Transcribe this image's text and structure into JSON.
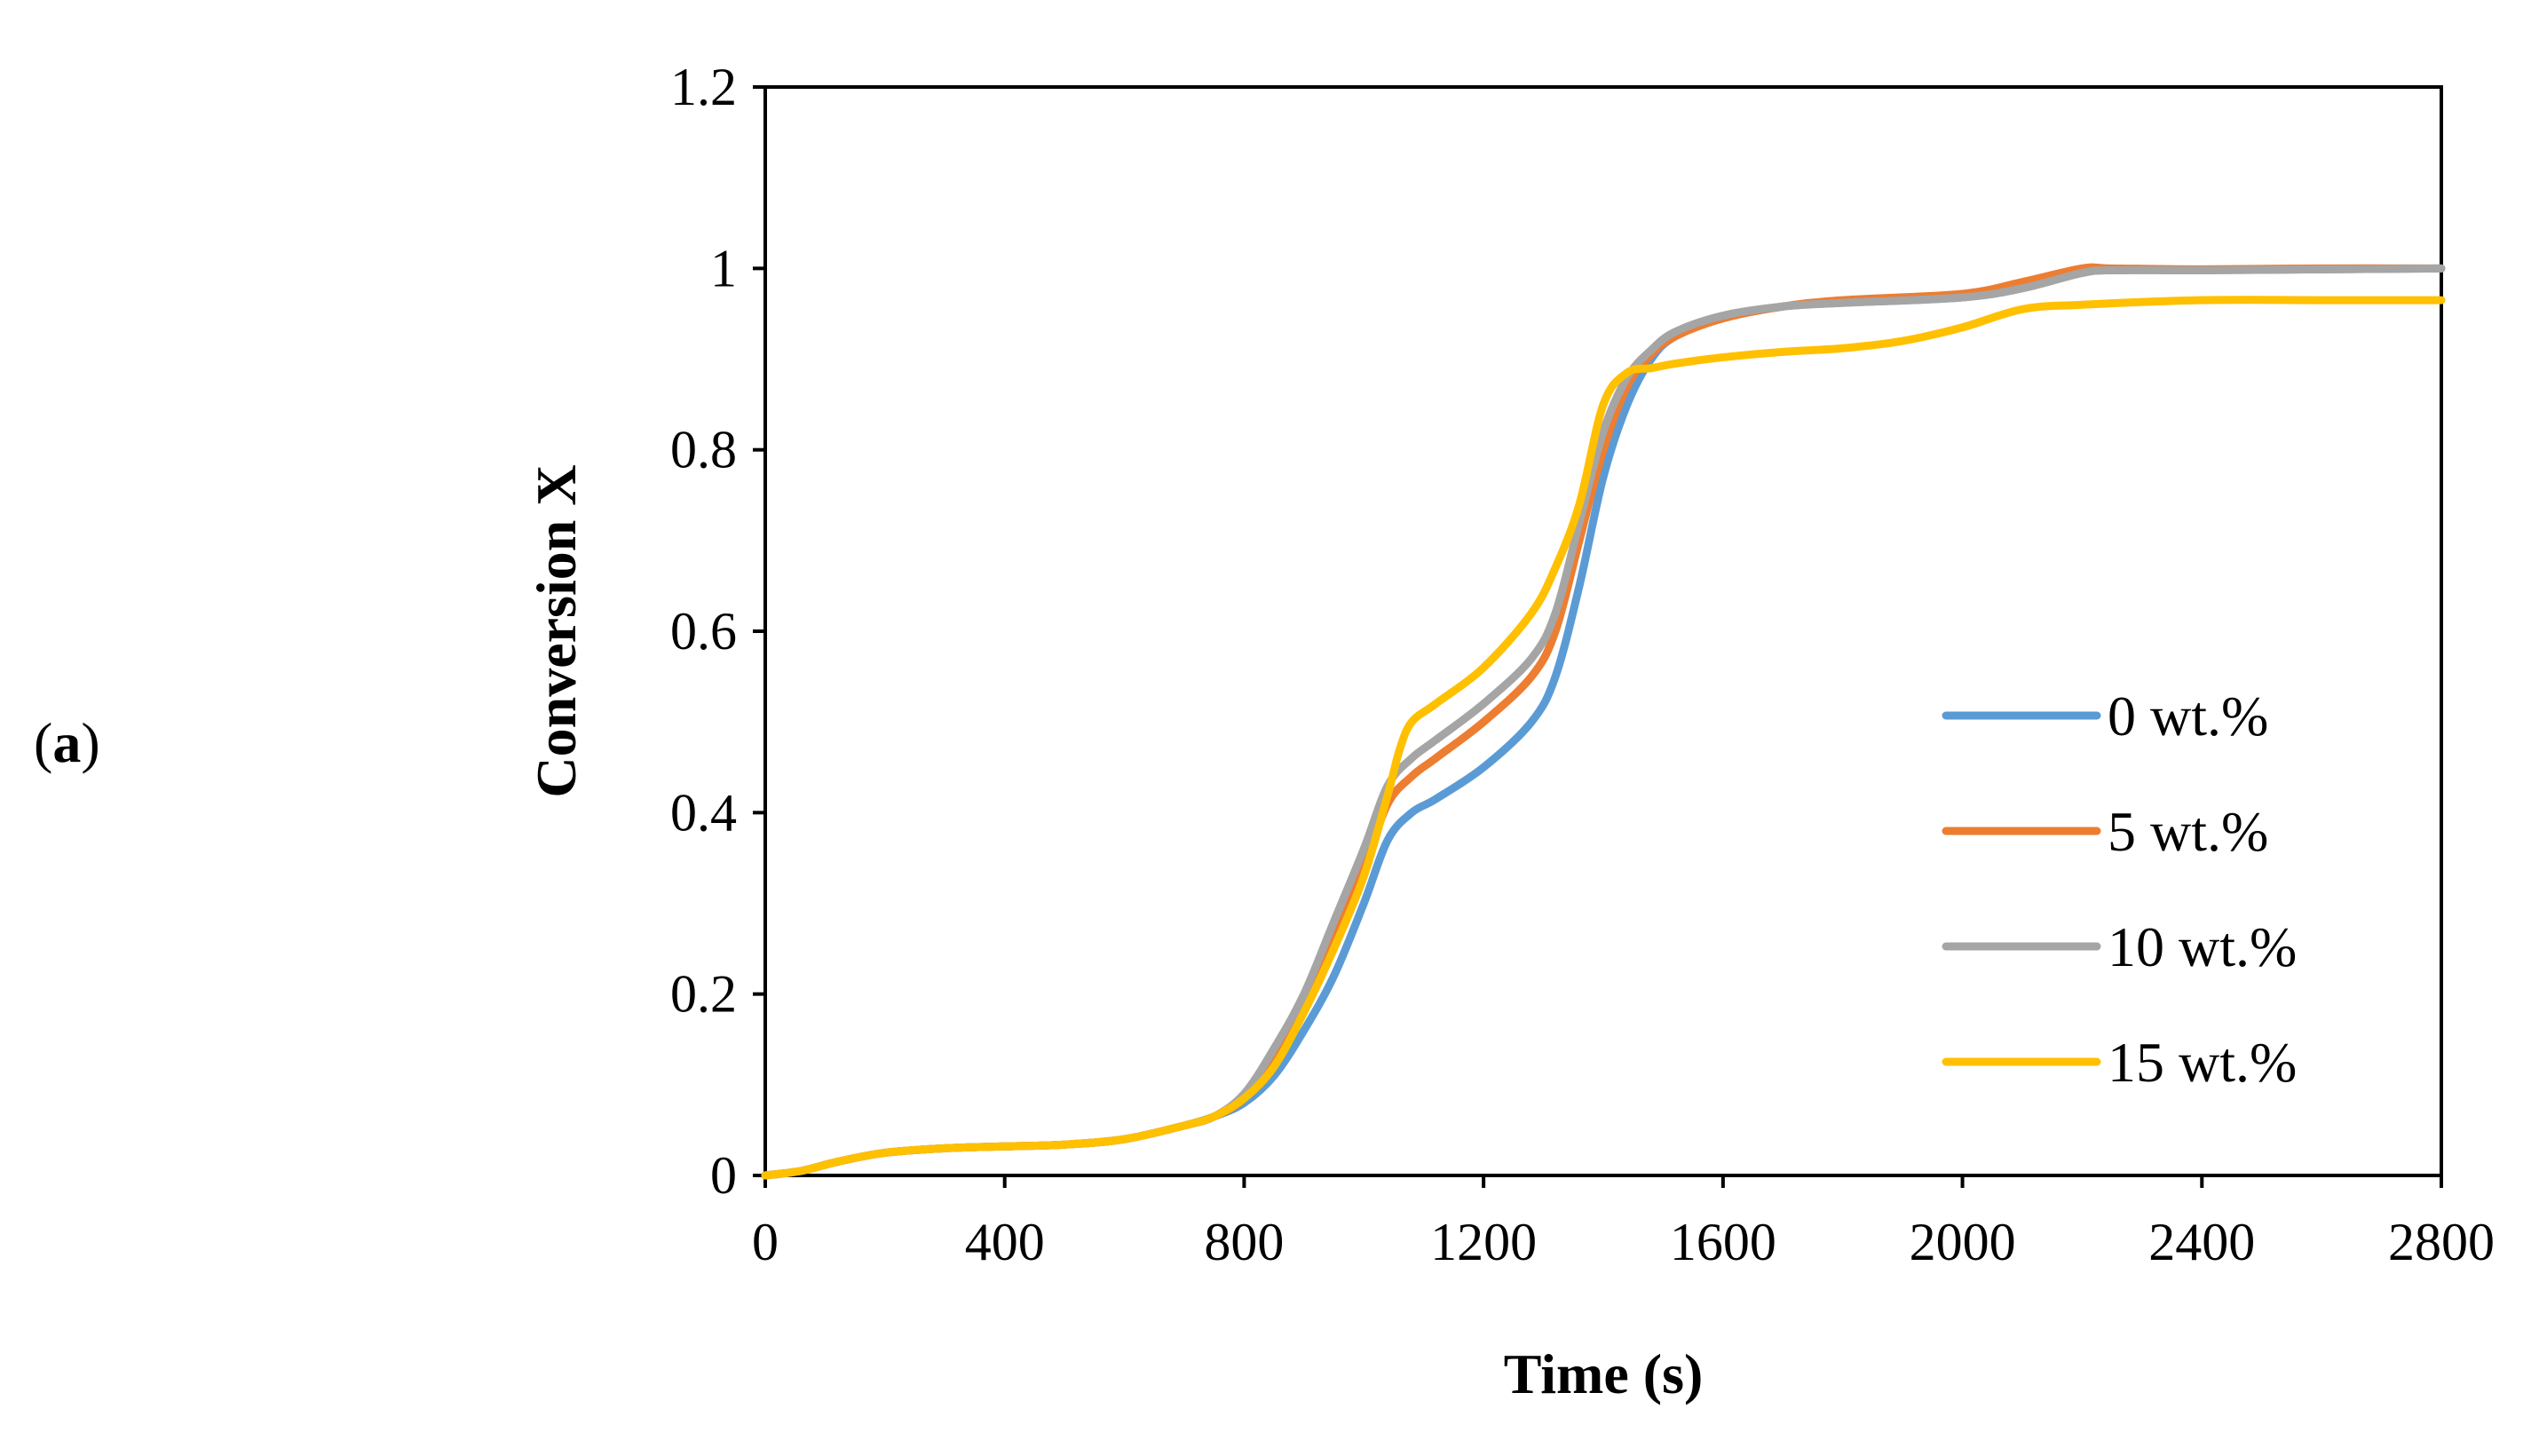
{
  "panel_label": {
    "open": "(",
    "letter": "a",
    "close": ")"
  },
  "chart_data": {
    "type": "line",
    "title": "",
    "xlabel": "Time (s)",
    "ylabel": "Conversion X",
    "xlim": [
      0,
      2800
    ],
    "ylim": [
      0,
      1.2
    ],
    "x_ticks": [
      0,
      400,
      800,
      1200,
      1600,
      2000,
      2400,
      2800
    ],
    "x_tick_labels": [
      "0",
      "400",
      "800",
      "1200",
      "1600",
      "2000",
      "2400",
      "2800"
    ],
    "y_ticks": [
      0,
      0.2,
      0.4,
      0.6,
      0.8,
      1,
      1.2
    ],
    "y_tick_labels": [
      "0",
      "0.2",
      "0.4",
      "0.6",
      "0.8",
      "1",
      "1.2"
    ],
    "grid": false,
    "legend_position": "right",
    "series": [
      {
        "name": "0 wt.%",
        "color": "#5B9BD5",
        "x": [
          0,
          60,
          120,
          200,
          300,
          400,
          500,
          600,
          700,
          750,
          800,
          850,
          900,
          950,
          1000,
          1040,
          1080,
          1120,
          1200,
          1280,
          1320,
          1360,
          1400,
          1440,
          1480,
          1520,
          1600,
          1700,
          1800,
          2000,
          2100,
          2200,
          2250,
          2400,
          2600,
          2800
        ],
        "y": [
          0,
          0.005,
          0.015,
          0.025,
          0.03,
          0.032,
          0.034,
          0.04,
          0.055,
          0.065,
          0.08,
          0.11,
          0.16,
          0.22,
          0.3,
          0.37,
          0.4,
          0.415,
          0.45,
          0.5,
          0.55,
          0.65,
          0.77,
          0.85,
          0.9,
          0.925,
          0.945,
          0.958,
          0.962,
          0.968,
          0.98,
          0.995,
          0.998,
          0.998,
          0.999,
          1.0
        ]
      },
      {
        "name": "5 wt.%",
        "color": "#ED7D31",
        "x": [
          0,
          60,
          120,
          200,
          300,
          400,
          500,
          600,
          700,
          750,
          800,
          850,
          900,
          950,
          1000,
          1040,
          1080,
          1120,
          1200,
          1280,
          1320,
          1360,
          1400,
          1440,
          1480,
          1520,
          1600,
          1700,
          1800,
          2000,
          2100,
          2200,
          2250,
          2400,
          2600,
          2800
        ],
        "y": [
          0,
          0.005,
          0.015,
          0.025,
          0.03,
          0.032,
          0.034,
          0.04,
          0.055,
          0.065,
          0.085,
          0.13,
          0.19,
          0.26,
          0.34,
          0.41,
          0.44,
          0.46,
          0.5,
          0.55,
          0.6,
          0.7,
          0.8,
          0.87,
          0.905,
          0.925,
          0.945,
          0.958,
          0.965,
          0.972,
          0.985,
          1.0,
          1.0,
          0.999,
          1.0,
          1.0
        ]
      },
      {
        "name": "10 wt.%",
        "color": "#A5A5A5",
        "x": [
          0,
          60,
          120,
          200,
          300,
          400,
          500,
          600,
          700,
          750,
          800,
          850,
          900,
          950,
          1000,
          1040,
          1080,
          1120,
          1200,
          1280,
          1320,
          1360,
          1400,
          1440,
          1480,
          1520,
          1600,
          1700,
          1800,
          2000,
          2100,
          2200,
          2250,
          2400,
          2600,
          2800
        ],
        "y": [
          0,
          0.005,
          0.015,
          0.025,
          0.03,
          0.032,
          0.034,
          0.04,
          0.055,
          0.065,
          0.09,
          0.14,
          0.2,
          0.28,
          0.36,
          0.43,
          0.46,
          0.48,
          0.52,
          0.57,
          0.62,
          0.72,
          0.82,
          0.88,
          0.91,
          0.93,
          0.948,
          0.958,
          0.962,
          0.968,
          0.978,
          0.995,
          0.998,
          0.998,
          0.999,
          1.0
        ]
      },
      {
        "name": "15 wt.%",
        "color": "#FFC000",
        "x": [
          0,
          60,
          120,
          200,
          300,
          400,
          500,
          600,
          700,
          750,
          800,
          850,
          900,
          950,
          1000,
          1040,
          1060,
          1080,
          1120,
          1200,
          1280,
          1320,
          1360,
          1400,
          1440,
          1480,
          1520,
          1600,
          1700,
          1800,
          1900,
          2000,
          2100,
          2200,
          2400,
          2600,
          2800
        ],
        "y": [
          0,
          0.005,
          0.015,
          0.025,
          0.03,
          0.032,
          0.034,
          0.04,
          0.055,
          0.065,
          0.085,
          0.12,
          0.18,
          0.25,
          0.33,
          0.42,
          0.47,
          0.5,
          0.52,
          0.56,
          0.62,
          0.67,
          0.74,
          0.85,
          0.885,
          0.89,
          0.895,
          0.902,
          0.908,
          0.912,
          0.92,
          0.935,
          0.955,
          0.96,
          0.965,
          0.965,
          0.965
        ]
      }
    ]
  }
}
